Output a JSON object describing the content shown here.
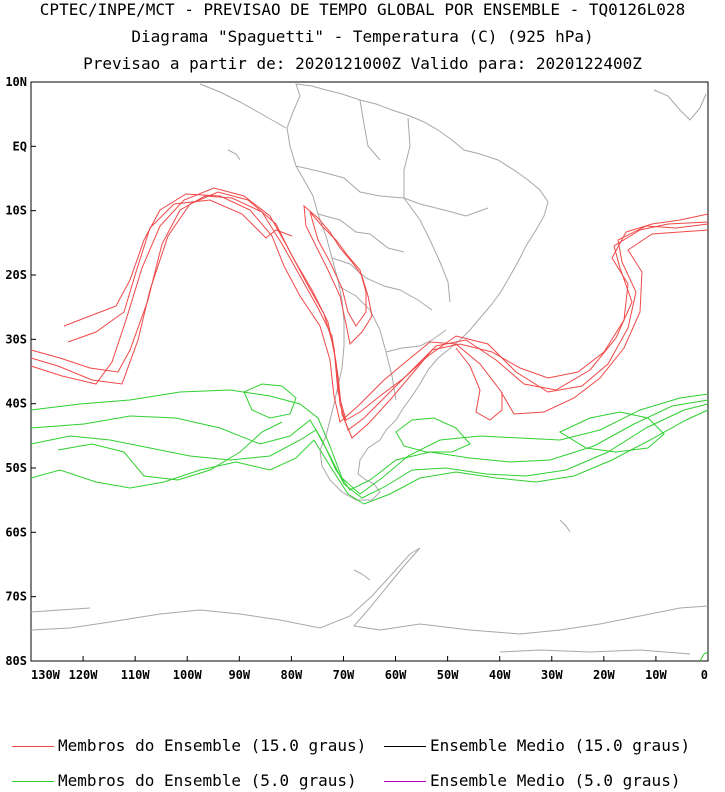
{
  "header": {
    "line1": "CPTEC/INPE/MCT - PREVISAO DE TEMPO GLOBAL POR ENSEMBLE - TQ0126L028",
    "line2": "Diagrama \"Spaguetti\" - Temperatura (C) (925 hPa)",
    "line3": "Previsao a partir de: 2020121000Z  Valido para: 2020122400Z"
  },
  "axes": {
    "lat_labels": [
      "10N",
      "EQ",
      "10S",
      "20S",
      "30S",
      "40S",
      "50S",
      "60S",
      "70S",
      "80S"
    ],
    "lon_labels": [
      "130W",
      "120W",
      "110W",
      "100W",
      "90W",
      "80W",
      "70W",
      "60W",
      "50W",
      "40W",
      "30W",
      "20W",
      "10W",
      "0"
    ],
    "lat_values": [
      10,
      0,
      -10,
      -20,
      -30,
      -40,
      -50,
      -60,
      -70,
      -80
    ],
    "lon_values": [
      -130,
      -120,
      -110,
      -100,
      -90,
      -80,
      -70,
      -60,
      -50,
      -40,
      -30,
      -20,
      -10,
      0
    ]
  },
  "legend": {
    "items": [
      {
        "label": "Membros do Ensemble (15.0 graus)",
        "color": "#f04848"
      },
      {
        "label": "Ensemble Medio (15.0 graus)",
        "color": "#000000"
      },
      {
        "label": "Membros do Ensemble (5.0 graus)",
        "color": "#30d030"
      },
      {
        "label": "Ensemble Medio (5.0 graus)",
        "color": "#c000c0"
      }
    ]
  },
  "colors": {
    "coast": "#a8a8a8",
    "member15": "#f04848",
    "member5": "#30d030"
  }
}
